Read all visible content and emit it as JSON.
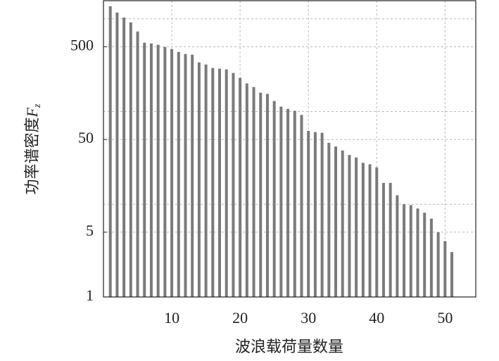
{
  "chart_data": {
    "type": "bar",
    "log_y": true,
    "grid": true,
    "color": "#7a7a7a",
    "xlabel": "波浪载荷量数量",
    "ylabel": "功率谱密度",
    "ylabel_symbol": "F",
    "ylabel_subscript": "z",
    "x": [
      1,
      2,
      3,
      4,
      5,
      6,
      7,
      8,
      9,
      10,
      11,
      12,
      13,
      14,
      15,
      16,
      17,
      18,
      19,
      20,
      21,
      22,
      23,
      24,
      25,
      26,
      27,
      28,
      29,
      30,
      31,
      32,
      33,
      34,
      35,
      36,
      37,
      38,
      39,
      40,
      41,
      42,
      43,
      44,
      45,
      46,
      47,
      48,
      49,
      50,
      51
    ],
    "values": [
      1368,
      1170,
      1035,
      916,
      731,
      553,
      543,
      525,
      498,
      472,
      440,
      418,
      411,
      339,
      322,
      295,
      290,
      285,
      261,
      231,
      201,
      184,
      160,
      155,
      130,
      113,
      107,
      102,
      92,
      62,
      60,
      59,
      46,
      42,
      38,
      34,
      32,
      28,
      27,
      25,
      17,
      17,
      12.5,
      10,
      9.8,
      9,
      8.1,
      7,
      5,
      4,
      3.05
    ],
    "xlim": [
      0,
      54.5
    ],
    "xticks": [
      10,
      20,
      30,
      40,
      50
    ],
    "ylim": [
      1,
      1570
    ],
    "yticks": [
      1,
      5,
      50,
      500
    ],
    "ygrid": [
      10,
      100,
      1000
    ]
  }
}
